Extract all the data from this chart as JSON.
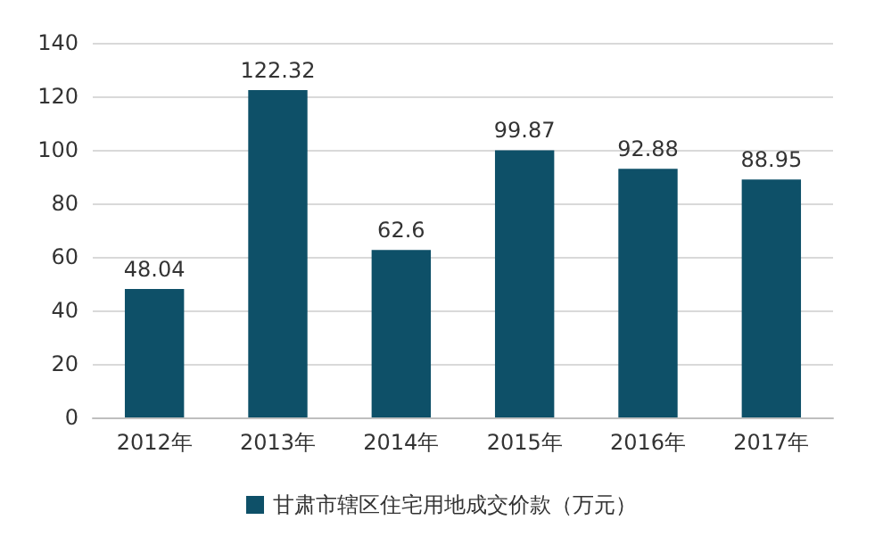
{
  "chart_data": {
    "type": "bar",
    "categories": [
      "2012年",
      "2013年",
      "2014年",
      "2015年",
      "2016年",
      "2017年"
    ],
    "series": [
      {
        "name": "甘肃市辖区住宅用地成交价款（万元）",
        "color": "#0e5068",
        "values": [
          48.04,
          122.32,
          62.6,
          99.87,
          92.88,
          88.95
        ]
      }
    ],
    "ylim": [
      0,
      140
    ],
    "yticks": [
      0,
      20,
      40,
      60,
      80,
      100,
      120,
      140
    ],
    "grid": "y",
    "legend": "bottom",
    "data_labels": true
  }
}
